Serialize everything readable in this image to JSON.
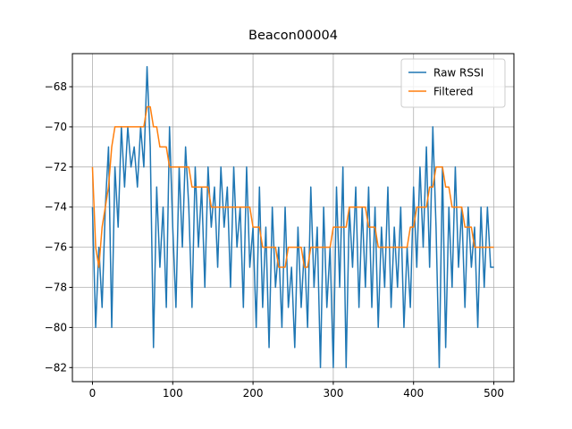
{
  "chart_data": {
    "type": "line",
    "title": "Beacon00004",
    "x": [
      0,
      4,
      8,
      12,
      16,
      20,
      24,
      28,
      32,
      36,
      40,
      44,
      48,
      52,
      56,
      60,
      64,
      68,
      72,
      76,
      80,
      84,
      88,
      92,
      96,
      100,
      104,
      108,
      112,
      116,
      120,
      124,
      128,
      132,
      136,
      140,
      144,
      148,
      152,
      156,
      160,
      164,
      168,
      172,
      176,
      180,
      184,
      188,
      192,
      196,
      200,
      204,
      208,
      212,
      216,
      220,
      224,
      228,
      232,
      236,
      240,
      244,
      248,
      252,
      256,
      260,
      264,
      268,
      272,
      276,
      280,
      284,
      288,
      292,
      296,
      300,
      304,
      308,
      312,
      316,
      320,
      324,
      328,
      332,
      336,
      340,
      344,
      348,
      352,
      356,
      360,
      364,
      368,
      372,
      376,
      380,
      384,
      388,
      392,
      396,
      400,
      404,
      408,
      412,
      416,
      420,
      424,
      428,
      432,
      436,
      440,
      444,
      448,
      452,
      456,
      460,
      464,
      468,
      472,
      476,
      480,
      484,
      488,
      492,
      496,
      500
    ],
    "series": [
      {
        "name": "Raw RSSI",
        "color": "#1f77b4",
        "values": [
          -74,
          -80,
          -76,
          -79,
          -74,
          -71,
          -80,
          -72,
          -75,
          -70,
          -73,
          -70,
          -72,
          -71,
          -73,
          -70,
          -72,
          -67,
          -71,
          -81,
          -73,
          -77,
          -74,
          -79,
          -70,
          -75,
          -79,
          -72,
          -76,
          -71,
          -74,
          -79,
          -72,
          -76,
          -73,
          -78,
          -72,
          -75,
          -73,
          -77,
          -72,
          -75,
          -73,
          -78,
          -72,
          -76,
          -74,
          -79,
          -72,
          -77,
          -75,
          -80,
          -73,
          -79,
          -75,
          -81,
          -74,
          -78,
          -76,
          -80,
          -74,
          -79,
          -77,
          -81,
          -75,
          -79,
          -76,
          -80,
          -73,
          -78,
          -75,
          -82,
          -74,
          -79,
          -76,
          -82,
          -73,
          -78,
          -72,
          -82,
          -74,
          -77,
          -73,
          -79,
          -74,
          -78,
          -73,
          -79,
          -74,
          -80,
          -75,
          -78,
          -73,
          -79,
          -75,
          -78,
          -74,
          -80,
          -76,
          -79,
          -73,
          -77,
          -72,
          -76,
          -71,
          -77,
          -70,
          -75,
          -82,
          -72,
          -81,
          -74,
          -78,
          -72,
          -77,
          -74,
          -79,
          -74,
          -77,
          -75,
          -80,
          -74,
          -78,
          -74,
          -77,
          -77
        ]
      },
      {
        "name": "Filtered",
        "color": "#ff7f0e",
        "values": [
          -72,
          -76,
          -77,
          -75,
          -74,
          -73,
          -71,
          -70,
          -70,
          -70,
          -70,
          -70,
          -70,
          -70,
          -70,
          -70,
          -70,
          -69,
          -69,
          -70,
          -70,
          -71,
          -71,
          -71,
          -72,
          -72,
          -72,
          -72,
          -72,
          -72,
          -72,
          -73,
          -73,
          -73,
          -73,
          -73,
          -73,
          -74,
          -74,
          -74,
          -74,
          -74,
          -74,
          -74,
          -74,
          -74,
          -74,
          -74,
          -74,
          -74,
          -75,
          -75,
          -75,
          -76,
          -76,
          -76,
          -76,
          -76,
          -77,
          -77,
          -77,
          -76,
          -76,
          -76,
          -76,
          -76,
          -77,
          -77,
          -76,
          -76,
          -76,
          -76,
          -76,
          -76,
          -76,
          -75,
          -75,
          -75,
          -75,
          -75,
          -74,
          -74,
          -74,
          -74,
          -74,
          -74,
          -75,
          -75,
          -75,
          -76,
          -76,
          -76,
          -76,
          -76,
          -76,
          -76,
          -76,
          -76,
          -76,
          -75,
          -75,
          -74,
          -74,
          -74,
          -74,
          -73,
          -73,
          -72,
          -72,
          -72,
          -73,
          -73,
          -74,
          -74,
          -74,
          -74,
          -75,
          -75,
          -75,
          -76,
          -76,
          -76,
          -76,
          -76,
          -76,
          -76
        ]
      }
    ],
    "xlim": [
      -25,
      525
    ],
    "ylim": [
      -82.7,
      -66.35
    ],
    "xticks": [
      0,
      100,
      200,
      300,
      400,
      500
    ],
    "yticks": [
      {
        "value": -82,
        "label": "−82"
      },
      {
        "value": -80,
        "label": "−80"
      },
      {
        "value": -78,
        "label": "−78"
      },
      {
        "value": -76,
        "label": "−76"
      },
      {
        "value": -74,
        "label": "−74"
      },
      {
        "value": -72,
        "label": "−72"
      },
      {
        "value": -70,
        "label": "−70"
      },
      {
        "value": -68,
        "label": "−68"
      }
    ],
    "grid": true,
    "legend": "upper right"
  }
}
